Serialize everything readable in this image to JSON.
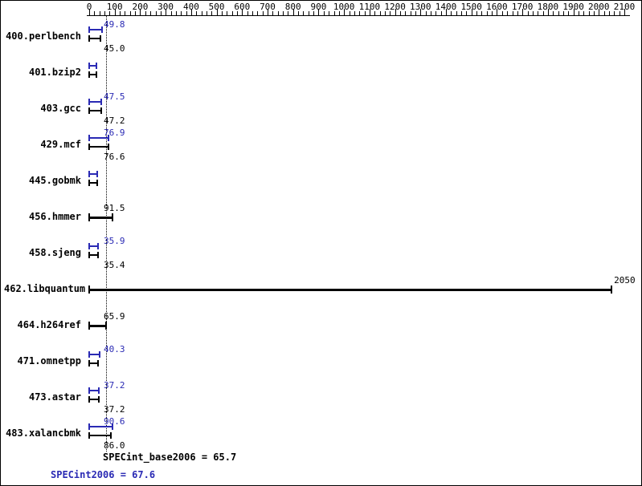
{
  "chart_data": {
    "type": "bar",
    "orientation": "horizontal",
    "x_axis": {
      "min": 0,
      "max": 2100,
      "major_tick_step": 100,
      "minor_tick_step": 20,
      "tick_labels": [
        "0",
        "100",
        "200",
        "300",
        "400",
        "500",
        "600",
        "700",
        "800",
        "900",
        "1000",
        "1100",
        "1200",
        "1300",
        "1400",
        "1500",
        "1600",
        "1700",
        "1800",
        "1900",
        "2000",
        "2100"
      ]
    },
    "reference_line": 67.6,
    "benchmarks": [
      {
        "name": "400.perlbench",
        "peak": 49.8,
        "base": 45.0
      },
      {
        "name": "401.bzip2",
        "peak": 27.7,
        "base": 27.3
      },
      {
        "name": "403.gcc",
        "peak": 47.5,
        "base": 47.2
      },
      {
        "name": "429.mcf",
        "peak": 76.9,
        "base": 76.6
      },
      {
        "name": "445.gobmk",
        "peak": 30.2,
        "base": 31.4
      },
      {
        "name": "456.hmmer",
        "value": 91.5
      },
      {
        "name": "458.sjeng",
        "peak": 35.9,
        "base": 35.4
      },
      {
        "name": "462.libquantum",
        "value": 2050
      },
      {
        "name": "464.h264ref",
        "value": 65.9
      },
      {
        "name": "471.omnetpp",
        "peak": 40.3,
        "base": 33.0
      },
      {
        "name": "473.astar",
        "peak": 37.2,
        "base": 37.2
      },
      {
        "name": "483.xalancbmk",
        "peak": 90.6,
        "base": 86.0
      }
    ],
    "footer": {
      "base_text": "SPECint_base2006 = 65.7",
      "peak_text": "SPECint2006 = 67.6"
    },
    "colors": {
      "peak": "#2a2ab4",
      "base": "#000000"
    }
  }
}
